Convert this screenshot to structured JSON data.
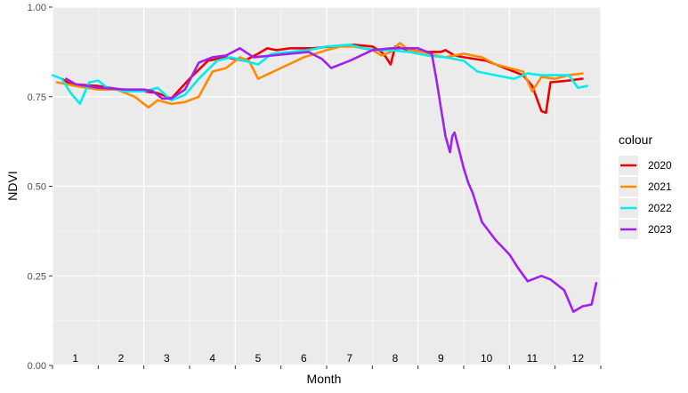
{
  "chart_data": {
    "type": "line",
    "title": "",
    "xlabel": "Month",
    "ylabel": "NDVI",
    "xlim": [
      1,
      13
    ],
    "ylim": [
      0,
      1
    ],
    "y_ticks": [
      0,
      0.25,
      0.5,
      0.75,
      1
    ],
    "y_tick_labels": [
      "0.00",
      "0.25",
      "0.50",
      "0.75",
      "1.00"
    ],
    "month_labels": [
      "1",
      "2",
      "3",
      "4",
      "5",
      "6",
      "7",
      "8",
      "9",
      "10",
      "11",
      "12"
    ],
    "grid": true,
    "legend": {
      "title": "colour",
      "position": "right"
    },
    "series": [
      {
        "name": "2020",
        "color": "#ee0000",
        "points": [
          [
            1.2,
            0.8
          ],
          [
            1.4,
            0.785
          ],
          [
            2.0,
            0.78
          ],
          [
            2.5,
            0.77
          ],
          [
            3.0,
            0.765
          ],
          [
            3.3,
            0.76
          ],
          [
            3.6,
            0.745
          ],
          [
            4.0,
            0.8
          ],
          [
            4.4,
            0.85
          ],
          [
            4.8,
            0.86
          ],
          [
            5.2,
            0.85
          ],
          [
            5.5,
            0.87
          ],
          [
            5.7,
            0.885
          ],
          [
            5.9,
            0.88
          ],
          [
            6.2,
            0.885
          ],
          [
            6.7,
            0.885
          ],
          [
            7.1,
            0.89
          ],
          [
            7.6,
            0.895
          ],
          [
            8.0,
            0.89
          ],
          [
            8.2,
            0.875
          ],
          [
            8.3,
            0.86
          ],
          [
            8.4,
            0.84
          ],
          [
            8.5,
            0.89
          ],
          [
            8.8,
            0.88
          ],
          [
            9.2,
            0.875
          ],
          [
            9.5,
            0.875
          ],
          [
            9.6,
            0.88
          ],
          [
            9.8,
            0.865
          ],
          [
            10.0,
            0.86
          ],
          [
            10.5,
            0.85
          ],
          [
            11.0,
            0.825
          ],
          [
            11.3,
            0.81
          ],
          [
            11.5,
            0.78
          ],
          [
            11.7,
            0.71
          ],
          [
            11.8,
            0.705
          ],
          [
            11.9,
            0.79
          ],
          [
            12.3,
            0.795
          ],
          [
            12.6,
            0.8
          ]
        ]
      },
      {
        "name": "2021",
        "color": "#ff8c00",
        "points": [
          [
            1.1,
            0.79
          ],
          [
            1.5,
            0.78
          ],
          [
            2.0,
            0.77
          ],
          [
            2.4,
            0.77
          ],
          [
            2.8,
            0.75
          ],
          [
            3.1,
            0.72
          ],
          [
            3.3,
            0.74
          ],
          [
            3.6,
            0.73
          ],
          [
            3.9,
            0.735
          ],
          [
            4.2,
            0.75
          ],
          [
            4.5,
            0.82
          ],
          [
            4.8,
            0.83
          ],
          [
            5.1,
            0.86
          ],
          [
            5.3,
            0.85
          ],
          [
            5.5,
            0.8
          ],
          [
            6.0,
            0.83
          ],
          [
            6.5,
            0.86
          ],
          [
            7.0,
            0.88
          ],
          [
            7.3,
            0.89
          ],
          [
            7.6,
            0.89
          ],
          [
            8.0,
            0.88
          ],
          [
            8.2,
            0.865
          ],
          [
            8.4,
            0.875
          ],
          [
            8.6,
            0.9
          ],
          [
            8.8,
            0.88
          ],
          [
            9.1,
            0.875
          ],
          [
            9.4,
            0.865
          ],
          [
            9.6,
            0.86
          ],
          [
            10.0,
            0.87
          ],
          [
            10.4,
            0.86
          ],
          [
            10.7,
            0.84
          ],
          [
            11.0,
            0.83
          ],
          [
            11.3,
            0.82
          ],
          [
            11.5,
            0.765
          ],
          [
            11.7,
            0.805
          ],
          [
            12.0,
            0.8
          ],
          [
            12.3,
            0.81
          ],
          [
            12.6,
            0.815
          ]
        ]
      },
      {
        "name": "2022",
        "color": "#00eeee",
        "points": [
          [
            1.0,
            0.81
          ],
          [
            1.2,
            0.8
          ],
          [
            1.4,
            0.76
          ],
          [
            1.6,
            0.73
          ],
          [
            1.8,
            0.79
          ],
          [
            2.0,
            0.795
          ],
          [
            2.2,
            0.775
          ],
          [
            2.6,
            0.765
          ],
          [
            3.0,
            0.765
          ],
          [
            3.3,
            0.775
          ],
          [
            3.6,
            0.74
          ],
          [
            3.9,
            0.755
          ],
          [
            4.2,
            0.8
          ],
          [
            4.6,
            0.85
          ],
          [
            4.9,
            0.86
          ],
          [
            5.2,
            0.85
          ],
          [
            5.5,
            0.84
          ],
          [
            5.8,
            0.87
          ],
          [
            6.2,
            0.875
          ],
          [
            6.6,
            0.88
          ],
          [
            7.0,
            0.89
          ],
          [
            7.5,
            0.895
          ],
          [
            7.8,
            0.885
          ],
          [
            8.1,
            0.88
          ],
          [
            8.4,
            0.88
          ],
          [
            8.8,
            0.875
          ],
          [
            9.2,
            0.865
          ],
          [
            9.6,
            0.86
          ],
          [
            10.0,
            0.85
          ],
          [
            10.3,
            0.82
          ],
          [
            10.7,
            0.81
          ],
          [
            11.1,
            0.8
          ],
          [
            11.4,
            0.815
          ],
          [
            11.7,
            0.81
          ],
          [
            12.0,
            0.81
          ],
          [
            12.3,
            0.81
          ],
          [
            12.5,
            0.775
          ],
          [
            12.7,
            0.78
          ]
        ]
      },
      {
        "name": "2023",
        "color": "#a020f0",
        "points": [
          [
            1.3,
            0.8
          ],
          [
            1.5,
            0.785
          ],
          [
            2.0,
            0.775
          ],
          [
            2.6,
            0.77
          ],
          [
            3.0,
            0.77
          ],
          [
            3.2,
            0.765
          ],
          [
            3.4,
            0.745
          ],
          [
            3.6,
            0.745
          ],
          [
            3.9,
            0.77
          ],
          [
            4.2,
            0.845
          ],
          [
            4.5,
            0.86
          ],
          [
            4.8,
            0.865
          ],
          [
            5.1,
            0.885
          ],
          [
            5.4,
            0.86
          ],
          [
            5.8,
            0.865
          ],
          [
            6.2,
            0.87
          ],
          [
            6.6,
            0.875
          ],
          [
            6.9,
            0.855
          ],
          [
            7.1,
            0.83
          ],
          [
            7.5,
            0.85
          ],
          [
            8.0,
            0.88
          ],
          [
            8.4,
            0.885
          ],
          [
            8.8,
            0.885
          ],
          [
            9.0,
            0.885
          ],
          [
            9.3,
            0.87
          ],
          [
            9.4,
            0.8
          ],
          [
            9.5,
            0.72
          ],
          [
            9.6,
            0.64
          ],
          [
            9.7,
            0.595
          ],
          [
            9.75,
            0.64
          ],
          [
            9.8,
            0.65
          ],
          [
            9.9,
            0.6
          ],
          [
            10.0,
            0.55
          ],
          [
            10.1,
            0.51
          ],
          [
            10.2,
            0.48
          ],
          [
            10.4,
            0.4
          ],
          [
            10.7,
            0.35
          ],
          [
            11.0,
            0.31
          ],
          [
            11.2,
            0.27
          ],
          [
            11.4,
            0.235
          ],
          [
            11.7,
            0.25
          ],
          [
            11.9,
            0.24
          ],
          [
            12.2,
            0.21
          ],
          [
            12.4,
            0.15
          ],
          [
            12.6,
            0.165
          ],
          [
            12.8,
            0.17
          ],
          [
            12.9,
            0.23
          ]
        ]
      }
    ]
  }
}
